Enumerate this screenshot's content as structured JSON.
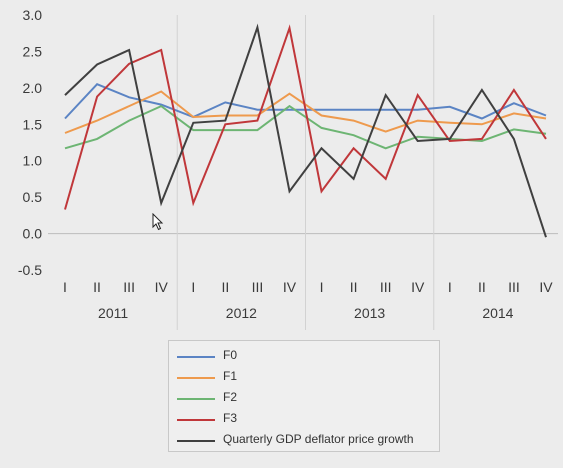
{
  "chart_data": {
    "type": "line",
    "title": "",
    "xlabel": "",
    "ylabel": "",
    "ylim": [
      -0.5,
      3.0
    ],
    "yticks": [
      "3.0",
      "2.5",
      "2.0",
      "1.5",
      "1.0",
      "0.5",
      "0.0",
      "-0.5"
    ],
    "x_quarters": [
      "I",
      "II",
      "III",
      "IV",
      "I",
      "II",
      "III",
      "IV",
      "I",
      "II",
      "III",
      "IV",
      "I",
      "II",
      "III",
      "IV"
    ],
    "x_years": [
      "2011",
      "2012",
      "2013",
      "2014"
    ],
    "grid": "vertical separators between years",
    "legend_position": "bottom",
    "series": [
      {
        "name": "F0",
        "color": "#5b84c4",
        "values": [
          1.58,
          2.05,
          1.87,
          1.77,
          1.6,
          1.8,
          1.7,
          1.7,
          1.7,
          1.7,
          1.7,
          1.7,
          1.74,
          1.58,
          1.79,
          1.62
        ]
      },
      {
        "name": "F1",
        "color": "#ee9a4d",
        "values": [
          1.38,
          1.55,
          1.75,
          1.95,
          1.6,
          1.62,
          1.62,
          1.92,
          1.62,
          1.55,
          1.4,
          1.55,
          1.52,
          1.5,
          1.65,
          1.58
        ]
      },
      {
        "name": "F2",
        "color": "#6db573",
        "values": [
          1.17,
          1.3,
          1.55,
          1.75,
          1.42,
          1.42,
          1.42,
          1.75,
          1.45,
          1.35,
          1.17,
          1.33,
          1.3,
          1.27,
          1.43,
          1.37
        ]
      },
      {
        "name": "F3",
        "color": "#c0373a",
        "values": [
          0.33,
          1.88,
          2.33,
          2.52,
          0.42,
          1.5,
          1.55,
          2.82,
          0.58,
          1.17,
          0.75,
          1.9,
          1.27,
          1.3,
          1.97,
          1.3
        ]
      },
      {
        "name": "Quarterly GDP deflator price growth",
        "color": "#404040",
        "values": [
          1.9,
          2.32,
          2.52,
          0.42,
          1.52,
          1.55,
          2.83,
          0.58,
          1.17,
          0.75,
          1.9,
          1.27,
          1.3,
          1.97,
          1.3,
          -0.05
        ]
      }
    ]
  }
}
